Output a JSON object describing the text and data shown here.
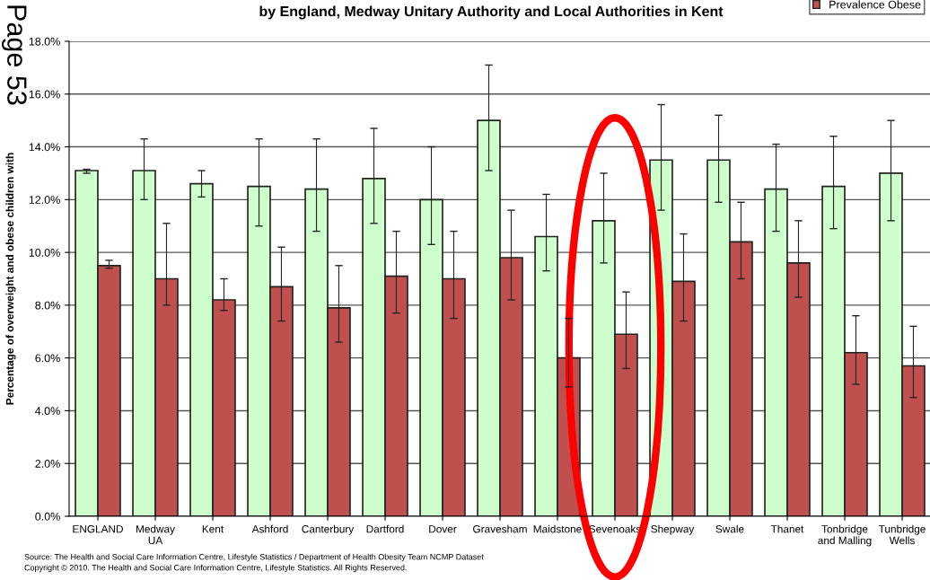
{
  "chart_data": {
    "type": "bar",
    "title": "by England, Medway Unitary Authority and Local Authorities in Kent",
    "ylabel": "Percentage of overweight and obese children with",
    "categories": [
      "ENGLAND",
      "Medway\nUA",
      "Kent",
      "Ashford",
      "Canterbury",
      "Dartford",
      "Dover",
      "Gravesham",
      "Maidstone",
      "Sevenoaks",
      "Shepway",
      "Swale",
      "Thanet",
      "Tonbridge\nand Malling",
      "Tunbridge\nWells"
    ],
    "series": [
      {
        "color": "#ccffcc",
        "values": [
          13.1,
          13.1,
          12.6,
          12.5,
          12.4,
          12.8,
          12.0,
          15.0,
          10.6,
          11.2,
          13.5,
          13.5,
          12.4,
          12.5,
          13.0
        ],
        "errors": [
          [
            13.0,
            13.15
          ],
          [
            12.0,
            14.3
          ],
          [
            12.1,
            13.1
          ],
          [
            11.0,
            14.3
          ],
          [
            10.8,
            14.3
          ],
          [
            11.1,
            14.7
          ],
          [
            10.3,
            14.0
          ],
          [
            13.1,
            17.1
          ],
          [
            9.3,
            12.2
          ],
          [
            9.6,
            13.0
          ],
          [
            11.6,
            15.6
          ],
          [
            11.9,
            15.2
          ],
          [
            10.8,
            14.1
          ],
          [
            10.9,
            14.4
          ],
          [
            11.2,
            15.0
          ]
        ]
      },
      {
        "name": "Prevalence Obese",
        "color": "#c0504d",
        "values": [
          9.5,
          9.0,
          8.2,
          8.7,
          7.9,
          9.1,
          9.0,
          9.8,
          6.0,
          6.9,
          8.9,
          10.4,
          9.6,
          6.2,
          5.7
        ],
        "errors": [
          [
            9.4,
            9.7
          ],
          [
            8.0,
            11.1
          ],
          [
            7.8,
            9.0
          ],
          [
            7.4,
            10.2
          ],
          [
            6.6,
            9.5
          ],
          [
            7.7,
            10.8
          ],
          [
            7.5,
            10.8
          ],
          [
            8.2,
            11.6
          ],
          [
            4.9,
            7.5
          ],
          [
            5.6,
            8.5
          ],
          [
            7.4,
            10.7
          ],
          [
            9.0,
            11.9
          ],
          [
            8.3,
            11.2
          ],
          [
            5.0,
            7.6
          ],
          [
            4.5,
            7.2
          ]
        ]
      }
    ],
    "ylim": [
      0,
      18
    ],
    "yticks": [
      {
        "value": 0,
        "label": "0.0%"
      },
      {
        "value": 2,
        "label": "2.0%"
      },
      {
        "value": 4,
        "label": "4.0%"
      },
      {
        "value": 6,
        "label": "6.0%"
      },
      {
        "value": 8,
        "label": "8.0%"
      },
      {
        "value": 10,
        "label": "10.0%"
      },
      {
        "value": 12,
        "label": "12.0%"
      },
      {
        "value": 14,
        "label": "14.0%"
      },
      {
        "value": 16,
        "label": "16.0%"
      },
      {
        "value": 18,
        "label": "18.0%"
      }
    ],
    "grid": "y",
    "legend": "top right",
    "annotations": [
      "Page 53",
      "Source: The Health and Social Care Information Centre, Lifestyle Statistics / Department of Health Obesity Team NCMP Dataset",
      "Copyright © 2010. The Health and Social Care Information Centre, Lifestyle Statistics. All Rights Reserved."
    ]
  }
}
